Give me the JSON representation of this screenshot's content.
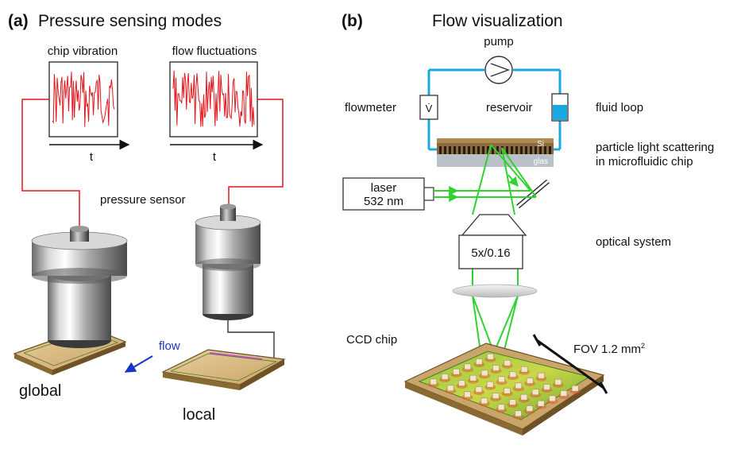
{
  "panel_a": {
    "tag": "(a)",
    "title": "Pressure sensing modes",
    "plot_left_title": "chip vibration",
    "plot_right_title": "flow fluctuations",
    "axis_label": "t",
    "sensor_label": "pressure sensor",
    "flow_label": "flow",
    "global_label": "global",
    "local_label": "local",
    "colors": {
      "signal": "#e4161b",
      "wire": "#e4161b",
      "flow_arrow": "#1a33c9",
      "flow_text": "#1a33c9"
    }
  },
  "panel_b": {
    "tag": "(b)",
    "title": "Flow visualization",
    "pump_label": "pump",
    "flowmeter_label": "flowmeter",
    "flowmeter_symbol": "V̇",
    "reservoir_label": "reservoir",
    "fluid_loop_label": "fluid loop",
    "scatter_label_1": "particle light scattering",
    "scatter_label_2": "in microfluidic chip",
    "si_label": "Si",
    "glas_label": "glas",
    "laser_line1": "laser",
    "laser_line2": "532 nm",
    "objective_label": "5x/0.16",
    "optical_label": "optical system",
    "ccd_label": "CCD chip",
    "fov_label": "FOV 1.2 mm",
    "fov_sup": "2",
    "colors": {
      "loop": "#19a8e0",
      "beam": "#2fd22f",
      "reservoir_fluid": "#19a8e0"
    }
  }
}
